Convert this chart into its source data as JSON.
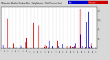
{
  "background_color": "#d8d8d8",
  "plot_bg": "#ffffff",
  "n_points": 365,
  "ylim": [
    0,
    2.2
  ],
  "blue_color": "#0000cc",
  "red_color": "#cc0000",
  "grid_color": "#999999",
  "title_left": "Milwaukee Weather Outdoor Rain",
  "title_fontsize": 2.0,
  "bar_width": 0.42,
  "yticks": [
    0.5,
    1.0,
    1.5,
    2.0
  ],
  "ytick_labels": [
    ".5",
    "1.",
    "1.5",
    "2."
  ]
}
